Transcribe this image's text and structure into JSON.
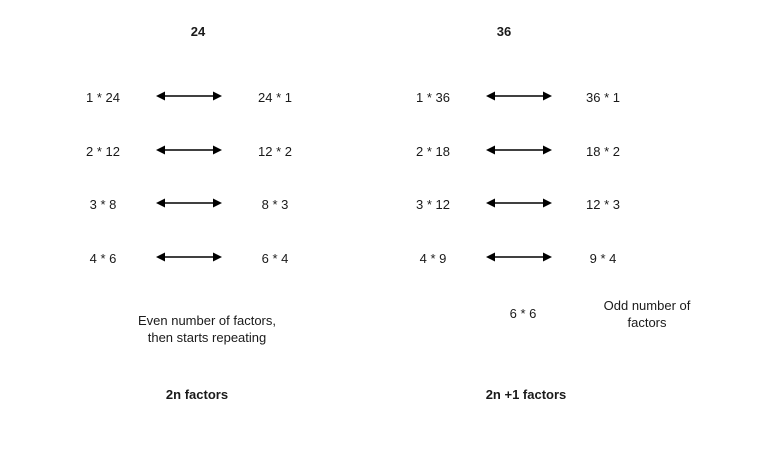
{
  "left": {
    "title": "24",
    "rows": [
      {
        "left": "1 * 24",
        "right": "24 * 1"
      },
      {
        "left": "2 * 12",
        "right": "12 * 2"
      },
      {
        "left": "3 * 8",
        "right": "8 * 3"
      },
      {
        "left": "4 * 6",
        "right": "6 * 4"
      }
    ],
    "note_line1": "Even number of factors,",
    "note_line2": "then starts repeating",
    "summary": "2n factors"
  },
  "right": {
    "title": "36",
    "rows": [
      {
        "left": "1 * 36",
        "right": "36 * 1"
      },
      {
        "left": "2 * 18",
        "right": "18 * 2"
      },
      {
        "left": "3 * 12",
        "right": "12 * 3"
      },
      {
        "left": "4 * 9",
        "right": "9 * 4"
      }
    ],
    "square": "6 * 6",
    "note_line1": "Odd number of",
    "note_line2": "factors",
    "summary": "2n +1 factors"
  }
}
